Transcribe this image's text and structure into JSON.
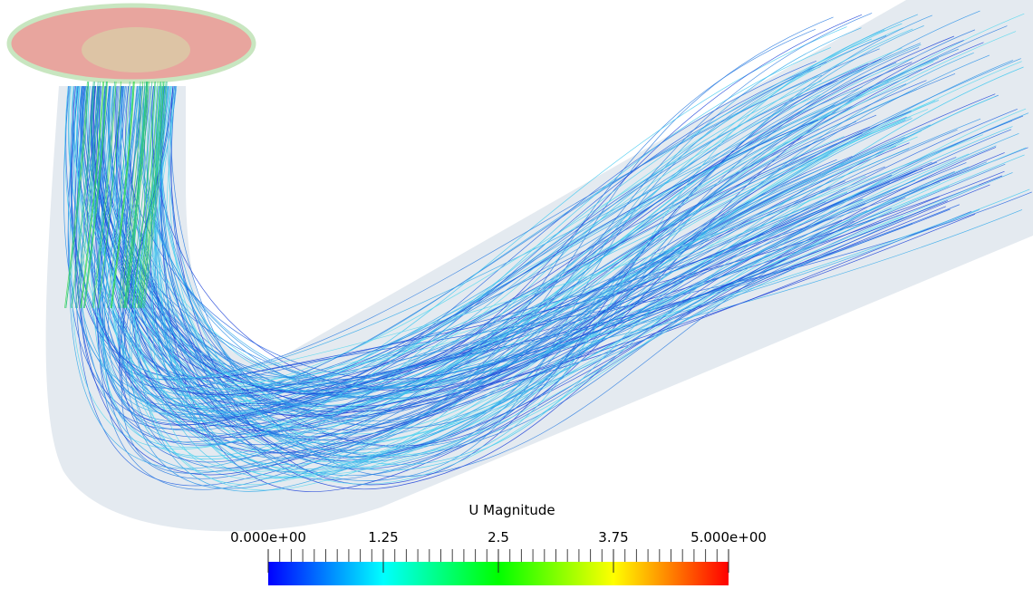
{
  "colorbar": {
    "title": "U  Magnitude",
    "range": [
      0,
      5
    ],
    "ticks": [
      {
        "value": 0,
        "label": "0.000e+00"
      },
      1.25,
      2.5,
      3.75,
      {
        "value": 5,
        "label": "5.000e+00"
      }
    ],
    "colors": [
      "#0000ff",
      "#00ffff",
      "#00ff00",
      "#ffff00",
      "#ff0000"
    ]
  }
}
